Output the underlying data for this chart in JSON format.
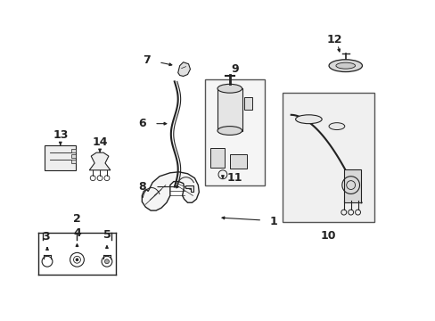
{
  "bg_color": "#ffffff",
  "line_color": "#222222",
  "fig_width": 4.89,
  "fig_height": 3.6,
  "dpi": 100,
  "label_fs": 9,
  "small_fs": 7
}
